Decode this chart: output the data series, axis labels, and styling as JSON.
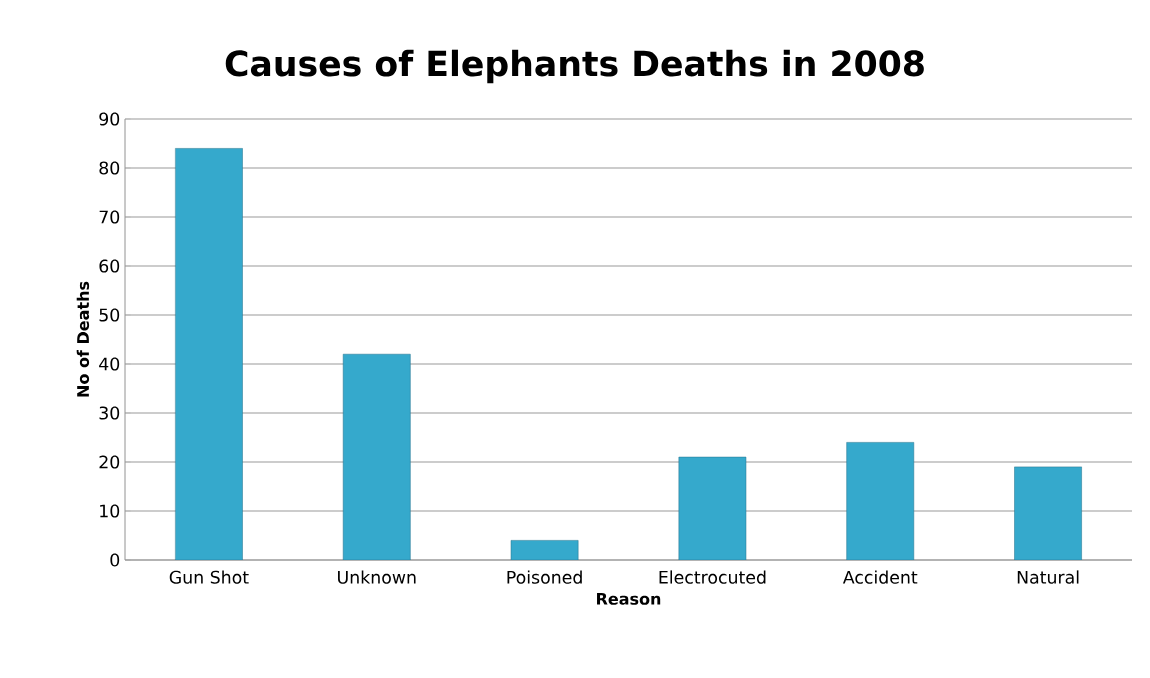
{
  "chart_data": {
    "type": "bar",
    "title": "Causes of Elephants Deaths in 2008",
    "xlabel": "Reason",
    "ylabel": "No of Deaths",
    "categories": [
      "Gun Shot",
      "Unknown",
      "Poisoned",
      "Electrocuted",
      "Accident",
      "Natural"
    ],
    "values": [
      84,
      42,
      4,
      21,
      24,
      19
    ],
    "color": "#35a9cc",
    "ylim": [
      0,
      90
    ],
    "yticks": [
      0,
      10,
      20,
      30,
      40,
      50,
      60,
      70,
      80,
      90
    ],
    "grid": "y"
  }
}
